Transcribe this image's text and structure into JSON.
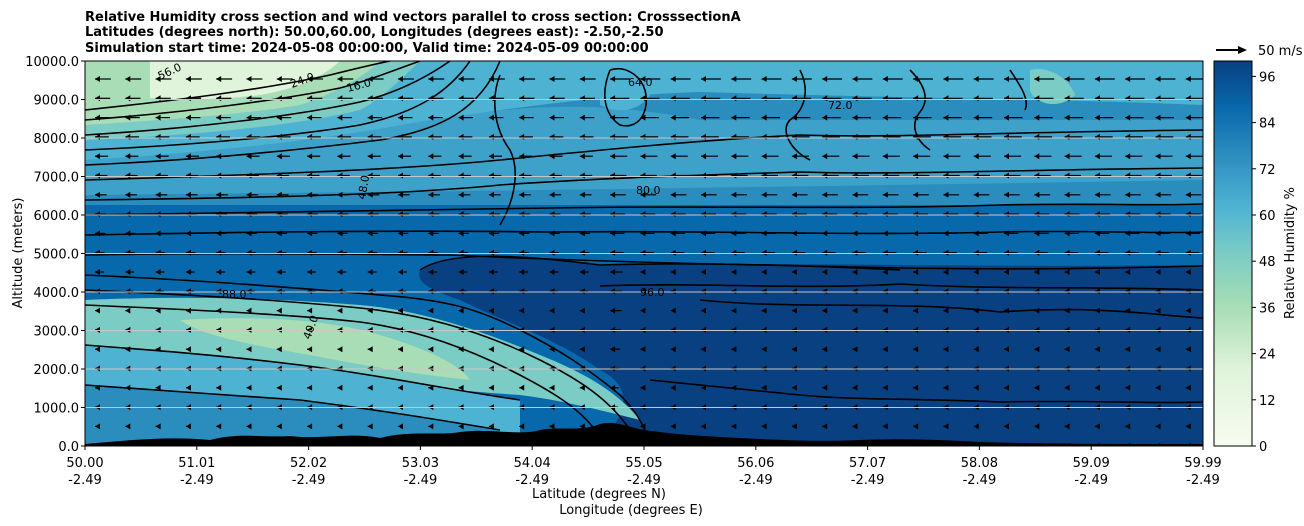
{
  "chart_data": {
    "type": "heatmap",
    "title_lines": [
      "Relative Humidity cross section and wind vectors parallel to cross section: CrosssectionA",
      "Latitudes (degrees north): 50.00,60.00, Longitudes (degrees east): -2.50,-2.50",
      "Simulation start time: 2024-05-08 00:00:00, Valid time: 2024-05-09 00:00:00"
    ],
    "ylabel": "Altitude (meters)",
    "xlabel_1": "Latitude (degrees N)",
    "xlabel_2": "Longitude (degrees E)",
    "y_ticks": [
      "0.0",
      "1000.0",
      "2000.0",
      "3000.0",
      "4000.0",
      "5000.0",
      "6000.0",
      "7000.0",
      "8000.0",
      "9000.0",
      "10000.0"
    ],
    "ylim": [
      0,
      10000
    ],
    "x_ticks": [
      {
        "lat": "50.00",
        "lon": "-2.49"
      },
      {
        "lat": "51.01",
        "lon": "-2.49"
      },
      {
        "lat": "52.02",
        "lon": "-2.49"
      },
      {
        "lat": "53.03",
        "lon": "-2.49"
      },
      {
        "lat": "54.04",
        "lon": "-2.49"
      },
      {
        "lat": "55.05",
        "lon": "-2.49"
      },
      {
        "lat": "56.06",
        "lon": "-2.49"
      },
      {
        "lat": "57.07",
        "lon": "-2.49"
      },
      {
        "lat": "58.08",
        "lon": "-2.49"
      },
      {
        "lat": "59.09",
        "lon": "-2.49"
      },
      {
        "lat": "59.99",
        "lon": "-2.49"
      }
    ],
    "colorbar": {
      "label": "Relative Humidity %",
      "range": [
        0,
        100
      ],
      "ticks": [
        "0",
        "12",
        "24",
        "36",
        "48",
        "60",
        "72",
        "84",
        "96"
      ]
    },
    "wind_key": "50 m/s",
    "contour_labels": [
      "16.0",
      "24.0",
      "40.0",
      "48.0",
      "56.0",
      "64.0",
      "72.0",
      "80.0",
      "88.0",
      "96.0"
    ],
    "grid": true
  }
}
